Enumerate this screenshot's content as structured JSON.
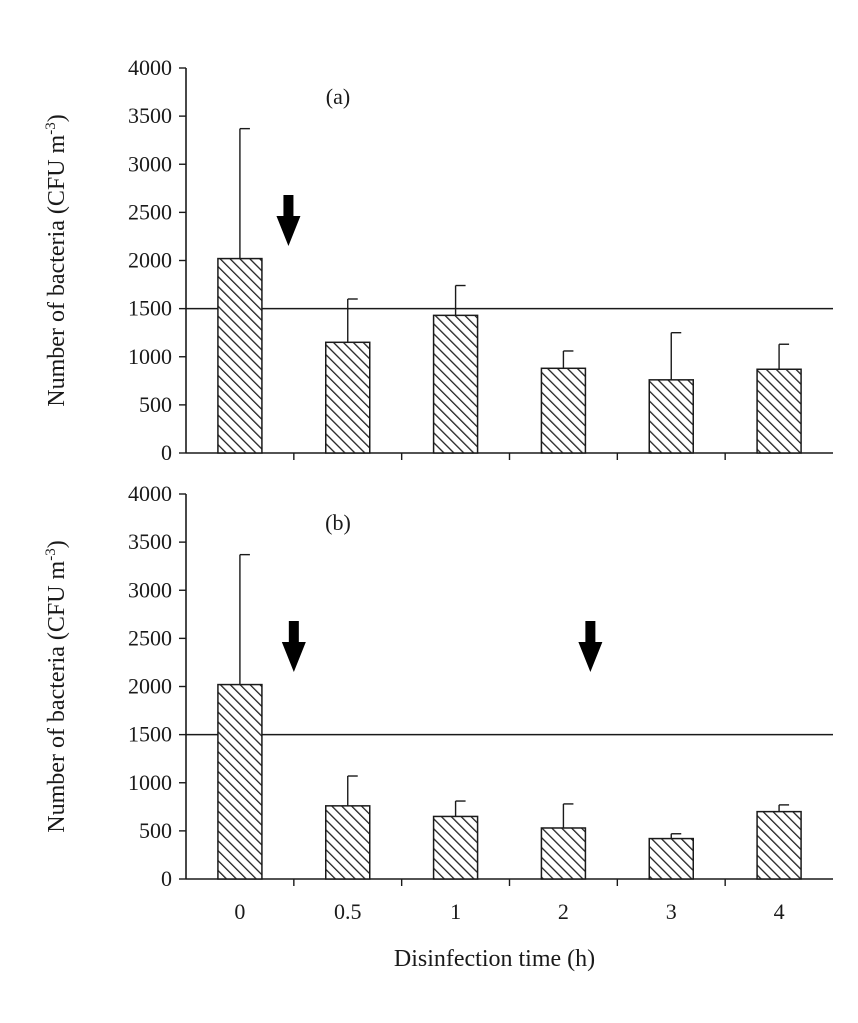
{
  "chart_data": [
    {
      "type": "bar",
      "panel_label": "(a)",
      "categories": [
        "0",
        "0.5",
        "1",
        "2",
        "3",
        "4"
      ],
      "values": [
        2020,
        1150,
        1430,
        880,
        760,
        870
      ],
      "error_upper": [
        3370,
        1600,
        1740,
        1060,
        1250,
        1130
      ],
      "ylabel": "Number of bacteria (CFU m",
      "ylabel_sup": "-3",
      "ylabel_close": ")",
      "ylim": [
        0,
        4000
      ],
      "yticks": [
        "0",
        "500",
        "1000",
        "1500",
        "2000",
        "2500",
        "3000",
        "3500",
        "4000"
      ],
      "reference_line": 1500,
      "arrows_at": [
        0.45
      ],
      "bar_fill": "hatched",
      "show_x_tick_labels": false
    },
    {
      "type": "bar",
      "panel_label": "(b)",
      "categories": [
        "0",
        "0.5",
        "1",
        "2",
        "3",
        "4"
      ],
      "values": [
        2020,
        760,
        650,
        530,
        420,
        700
      ],
      "error_upper": [
        3370,
        1070,
        810,
        780,
        470,
        770
      ],
      "ylabel": "Number of bacteria (CFU m",
      "ylabel_sup": "-3",
      "ylabel_close": ")",
      "ylim": [
        0,
        4000
      ],
      "yticks": [
        "0",
        "500",
        "1000",
        "1500",
        "2000",
        "2500",
        "3000",
        "3500",
        "4000"
      ],
      "reference_line": 1500,
      "arrows_at": [
        0.5,
        3.25
      ],
      "bar_fill": "hatched",
      "xlabel": "Disinfection time (h)",
      "show_x_tick_labels": true
    }
  ],
  "colors": {
    "bar_stroke": "#1a1a1a",
    "axis": "#1a1a1a",
    "hatch": "#222222",
    "arrow": "#000000"
  }
}
